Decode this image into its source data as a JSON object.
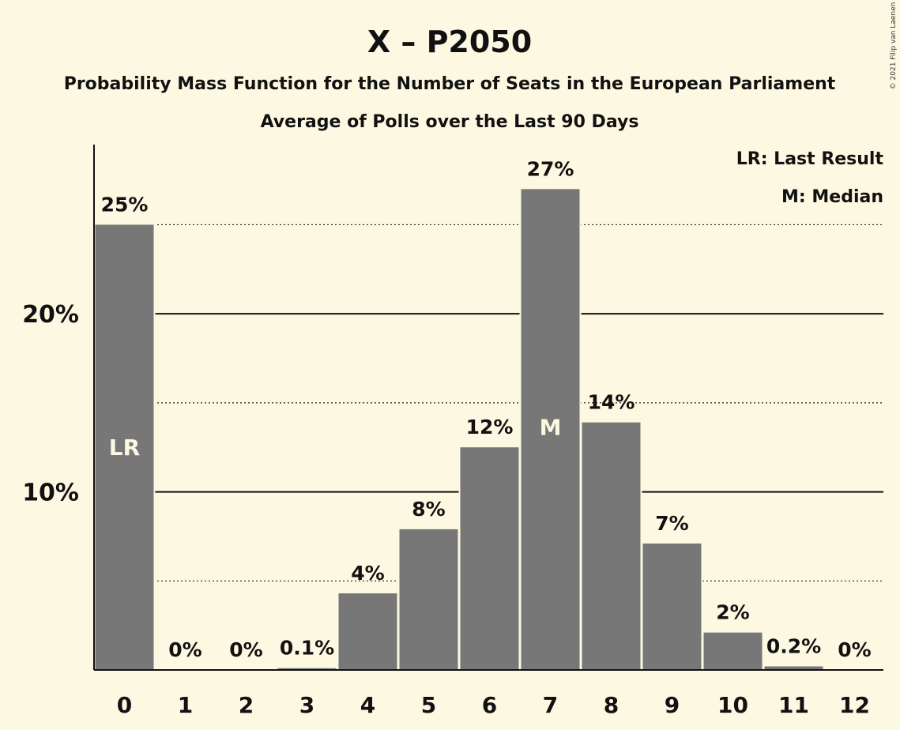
{
  "chart_data": {
    "type": "bar",
    "title": "X – P2050",
    "subtitle": "Probability Mass Function for the Number of Seats in the European Parliament",
    "subtitle2": "Average of Polls over the Last 90 Days",
    "copyright": "© 2021 Filip van Laenen",
    "legend": {
      "placement": "top-right",
      "entries": [
        "LR: Last Result",
        "M: Median"
      ]
    },
    "categories": [
      "0",
      "1",
      "2",
      "3",
      "4",
      "5",
      "6",
      "7",
      "8",
      "9",
      "10",
      "11",
      "12"
    ],
    "values": [
      25,
      0,
      0,
      0.1,
      4.3,
      7.9,
      12.5,
      27,
      13.9,
      7.1,
      2.1,
      0.2,
      0
    ],
    "data_labels": [
      "25%",
      "0%",
      "0%",
      "0.1%",
      "4%",
      "8%",
      "12%",
      "27%",
      "14%",
      "7%",
      "2%",
      "0.2%",
      "0%"
    ],
    "bar_annotations": [
      {
        "index": 0,
        "text": "LR"
      },
      {
        "index": 7,
        "text": "M"
      }
    ],
    "yticks": [
      {
        "value": 10,
        "label": "10%"
      },
      {
        "value": 20,
        "label": "20%"
      }
    ],
    "minor_gridlines": [
      5,
      15,
      25
    ],
    "ylim": [
      0,
      29.5
    ],
    "colors": {
      "bar": "#777777",
      "background": "#fdf8e1",
      "text": "#111111",
      "in_bar_text": "#fdf8e1"
    }
  }
}
